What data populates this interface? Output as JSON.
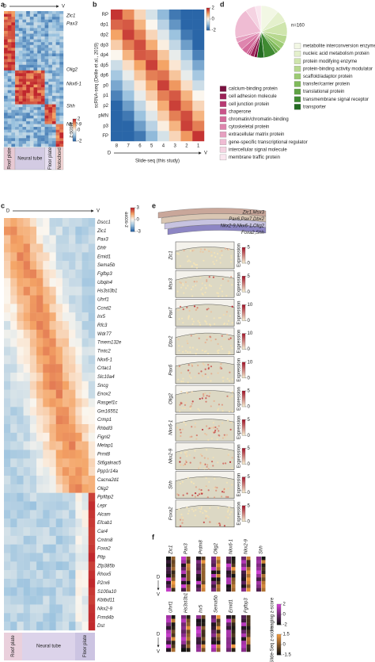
{
  "panel_a": {
    "label": "a",
    "axis_start": "D",
    "axis_end": "V",
    "genes": [
      "Zic1",
      "Pax3",
      "Olig2",
      "Nkx6-1",
      "Shh",
      "Nkx2-9"
    ],
    "regions": [
      "Roof plate",
      "Neural tube",
      "Floor plate",
      "Notochord"
    ],
    "colorbar_title": "z-score",
    "colorbar_ticks": [
      2,
      0,
      -2
    ]
  },
  "panel_b": {
    "label": "b",
    "rows": [
      "RP",
      "dp1",
      "dp2",
      "dp3",
      "dp4",
      "dp5",
      "dp6",
      "p0",
      "p1",
      "p2",
      "pMN",
      "p3",
      "FP"
    ],
    "cols": [
      "8",
      "7",
      "6",
      "5",
      "4",
      "3",
      "2",
      "1"
    ],
    "ylabel": "scRNA-seq (Delile et al., 2019)",
    "xlabel": "Slide-seq (this study)",
    "axis_start": "D",
    "axis_end": "V",
    "colorbar_ticks": [
      2,
      0,
      -2
    ],
    "values": [
      [
        1.9,
        1.2,
        0.4,
        -0.4,
        -1.1,
        -1.8,
        -2,
        -2
      ],
      [
        1.5,
        1.6,
        0.8,
        0,
        -0.7,
        -1.5,
        -2,
        -2
      ],
      [
        1.0,
        1.8,
        1.3,
        0.4,
        -0.3,
        -1.0,
        -1.8,
        -2
      ],
      [
        0.5,
        1.3,
        1.7,
        0.9,
        0.1,
        -0.6,
        -1.4,
        -2
      ],
      [
        0,
        0.8,
        1.6,
        1.5,
        0.6,
        -0.2,
        -0.9,
        -1.7
      ],
      [
        -0.5,
        0.3,
        1.0,
        1.8,
        1.0,
        0.2,
        -0.5,
        -1.3
      ],
      [
        -0.9,
        -0.2,
        0.6,
        1.3,
        1.4,
        0.6,
        -0.2,
        -0.9
      ],
      [
        -1.3,
        -0.6,
        0.2,
        0.9,
        1.8,
        1.1,
        0.3,
        -0.5
      ],
      [
        -1.7,
        -1.0,
        -0.2,
        0.5,
        1.3,
        1.6,
        0.8,
        0
      ],
      [
        -2,
        -1.4,
        -0.6,
        0.1,
        0.9,
        1.8,
        1.2,
        0.4
      ],
      [
        -2,
        -1.8,
        -1.0,
        -0.3,
        0.5,
        1.3,
        1.7,
        0.8
      ],
      [
        -2,
        -2,
        -1.4,
        -0.7,
        0.1,
        0.8,
        1.8,
        1.3
      ],
      [
        -2,
        -2,
        -1.8,
        -1.1,
        -0.4,
        0.4,
        1.1,
        1.9
      ]
    ]
  },
  "panel_d": {
    "label": "d",
    "n_label": "n=160",
    "right_legend": [
      {
        "name": "metabolite interconversion enzyme",
        "count": 18,
        "color": "#f2f7e4"
      },
      {
        "name": "nucleic acid metabolism protein",
        "count": 12,
        "color": "#e4f0cc"
      },
      {
        "name": "protein modifying enzyme",
        "count": 14,
        "color": "#cfe5ad"
      },
      {
        "name": "protein-binding activity modulator",
        "count": 8,
        "color": "#b7d88f"
      },
      {
        "name": "scaffold/adaptor protein",
        "count": 6,
        "color": "#9ccb73"
      },
      {
        "name": "transfer/carrier protein",
        "count": 4,
        "color": "#7fba5a"
      },
      {
        "name": "translational protein",
        "count": 3,
        "color": "#5fa244"
      },
      {
        "name": "transmembrane signal receptor",
        "count": 12,
        "color": "#3f8a32"
      },
      {
        "name": "transporter",
        "count": 7,
        "color": "#236b22"
      }
    ],
    "left_legend": [
      {
        "name": "calcium-binding protein",
        "count": 3,
        "color": "#7a1040"
      },
      {
        "name": "cell adhesion molecule",
        "count": 4,
        "color": "#9c2258"
      },
      {
        "name": "cell junction protein",
        "count": 2,
        "color": "#b83a72"
      },
      {
        "name": "chaperone",
        "count": 2,
        "color": "#c9548a"
      },
      {
        "name": "chromatin/chromatin-binding",
        "count": 6,
        "color": "#d46b9b"
      },
      {
        "name": "cytoskeletal protein",
        "count": 8,
        "color": "#de85ae"
      },
      {
        "name": "extracellular matrix protein",
        "count": 5,
        "color": "#e6a0c0"
      },
      {
        "name": "gene-specific transcriptional regulator",
        "count": 30,
        "color": "#efbcd3"
      },
      {
        "name": "intercellular signal molecule",
        "count": 10,
        "color": "#f5d3e2"
      },
      {
        "name": "membrane traffic protein",
        "count": 6,
        "color": "#fae6ef"
      }
    ]
  },
  "panel_c": {
    "label": "c",
    "axis_start": "D",
    "axis_end": "V",
    "colorbar_title": "z-score",
    "colorbar_ticks": [
      3,
      0,
      -3
    ],
    "regions": [
      "Roof plate",
      "Neural tube",
      "Floor plate"
    ],
    "genes": [
      "Dscc1",
      "Zic1",
      "Pax3",
      "Dhfr",
      "Emid1",
      "Sema5b",
      "Fgfbp3",
      "Ubqln4",
      "Hs3st3b1",
      "Uhrf1",
      "Ccnd2",
      "Irx5",
      "Rfc3",
      "Wdr77",
      "Tmem132e",
      "Tmtc2",
      "Nkx6-1",
      "Crtac1",
      "Slc10a4",
      "Sncg",
      "Enox2",
      "Rasgef1c",
      "Gm16551",
      "Crmp1",
      "Rhbdl3",
      "Fignl2",
      "Metap1",
      "Prmt8",
      "St6galnac5",
      "Ppp1r14a",
      "Cacna2d1",
      "Olig2",
      "Ppfibp2",
      "Lepr",
      "Alcam",
      "Efcab1",
      "Car4",
      "Cmtm8",
      "Foxa2",
      "Pltp",
      "Zfp385b",
      "Rhox5",
      "P2rx6",
      "S100a10",
      "Kbtbd11",
      "Nkx2-9",
      "Frmd4b",
      "Dst"
    ]
  },
  "panel_e": {
    "label": "e",
    "domains": [
      "Zic1,Msx3",
      "Pax6,Pax7,Dbx2",
      "Nkx2-9,Nkx6-1,Olig2",
      "Foxa2,Shh"
    ],
    "expression_label": "Expression",
    "rows": [
      {
        "gene": "Zic1",
        "ticks": [
          5,
          0
        ]
      },
      {
        "gene": "Msx3",
        "ticks": [
          5,
          0
        ]
      },
      {
        "gene": "Pax7",
        "ticks": [
          10,
          0
        ]
      },
      {
        "gene": "Dbx2",
        "ticks": [
          10,
          0
        ]
      },
      {
        "gene": "Pax6",
        "ticks": [
          10,
          0
        ]
      },
      {
        "gene": "Olig2",
        "ticks": [
          5,
          0
        ]
      },
      {
        "gene": "Nkx6-1",
        "ticks": [
          5,
          0
        ]
      },
      {
        "gene": "Nkx2-9",
        "ticks": [
          5,
          0
        ]
      },
      {
        "gene": "Shh",
        "ticks": [
          5,
          0
        ]
      },
      {
        "gene": "Foxa2",
        "ticks": [
          5,
          0
        ]
      }
    ]
  },
  "panel_f": {
    "label": "f",
    "axis_start": "D",
    "axis_end": "V",
    "top_genes": [
      "Zic1",
      "Pax3",
      "Prdm8",
      "Olig2",
      "Nkx6-1",
      "Nkx2-9",
      "Shh"
    ],
    "bottom_genes": [
      "Uhrf1",
      "Hs3st3b1",
      "Irx5",
      "Sema5b",
      "Emid1",
      "Fgfbp3"
    ],
    "imaging_title": "Imaging z-score",
    "imaging_ticks": [
      2,
      0,
      -2
    ],
    "slideseq_title": "Slide-Seq z-score",
    "slideseq_ticks": [
      1.5,
      0,
      -1.5
    ]
  }
}
